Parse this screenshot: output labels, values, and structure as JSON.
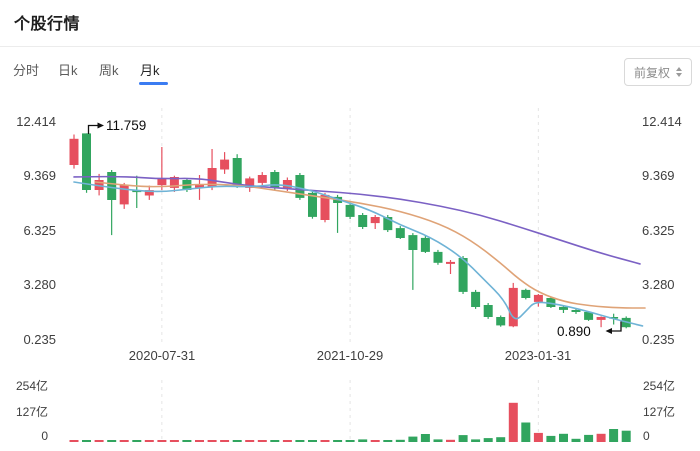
{
  "header": {
    "title": "个股行情"
  },
  "tabs": [
    {
      "label": "分时",
      "active": false
    },
    {
      "label": "日k",
      "active": false
    },
    {
      "label": "周k",
      "active": false
    },
    {
      "label": "月k",
      "active": true
    }
  ],
  "adjust_button": {
    "label": "前复权",
    "icon": "updown-sort-arrows"
  },
  "chart_data": {
    "type": "candlestick",
    "interval": "monthly",
    "y_axis_labels": [
      "12.414",
      "9.369",
      "6.325",
      "3.280",
      "0.235"
    ],
    "y_axis_values": [
      12.414,
      9.369,
      6.325,
      3.28,
      0.235
    ],
    "x_axis_labels": [
      "2020-07-31",
      "2021-10-29",
      "2023-01-31"
    ],
    "x_label_candle_indices": [
      7,
      22,
      37
    ],
    "volume_axis_labels": [
      "254亿",
      "127亿",
      "0"
    ],
    "volume_axis_values": [
      254,
      127,
      0
    ],
    "volume_unit": "亿",
    "annotations": {
      "max": {
        "label": "11.759",
        "value": 11.759,
        "candle_index": 1
      },
      "min": {
        "label": "0.890",
        "value": 0.89,
        "candle_index": 44
      }
    },
    "colors": {
      "up": "#e64f5e",
      "down": "#31a55f",
      "grid": "#e4e4e4",
      "ma_short": "#6fb3d6",
      "ma_mid": "#dfa377",
      "ma_long": "#7b61c4",
      "tab_accent": "#3b7cf2"
    },
    "candles": [
      [
        10.0,
        11.7,
        9.8,
        11.46
      ],
      [
        11.759,
        11.759,
        8.45,
        8.6
      ],
      [
        8.6,
        9.5,
        8.3,
        9.16
      ],
      [
        9.61,
        9.72,
        6.09,
        8.05
      ],
      [
        7.8,
        9.0,
        7.55,
        8.88
      ],
      [
        8.6,
        9.4,
        7.6,
        8.49
      ],
      [
        8.3,
        8.85,
        8.05,
        8.6
      ],
      [
        8.88,
        11.0,
        8.6,
        9.27
      ],
      [
        8.72,
        9.4,
        8.5,
        9.33
      ],
      [
        9.16,
        9.27,
        8.49,
        8.6
      ],
      [
        8.72,
        9.44,
        8.05,
        8.9
      ],
      [
        8.77,
        10.89,
        8.6,
        9.83
      ],
      [
        9.75,
        10.72,
        9.5,
        10.3
      ],
      [
        10.39,
        10.6,
        8.72,
        8.88
      ],
      [
        8.72,
        9.35,
        8.5,
        9.25
      ],
      [
        9.0,
        9.6,
        8.85,
        9.44
      ],
      [
        9.61,
        9.72,
        8.6,
        8.72
      ],
      [
        8.72,
        9.3,
        8.55,
        9.16
      ],
      [
        9.44,
        9.55,
        8.05,
        8.16
      ],
      [
        8.44,
        8.55,
        7.0,
        7.1
      ],
      [
        6.93,
        8.44,
        6.8,
        8.33
      ],
      [
        8.22,
        8.33,
        6.21,
        7.88
      ],
      [
        7.77,
        7.88,
        6.98,
        7.1
      ],
      [
        7.21,
        7.32,
        6.43,
        6.54
      ],
      [
        6.76,
        7.21,
        6.43,
        7.1
      ],
      [
        7.1,
        7.21,
        6.26,
        6.37
      ],
      [
        6.48,
        6.59,
        5.87,
        5.93
      ],
      [
        6.09,
        6.2,
        3.03,
        5.26
      ],
      [
        5.93,
        6.04,
        5.09,
        5.15
      ],
      [
        5.15,
        5.26,
        4.43,
        4.54
      ],
      [
        4.48,
        4.7,
        3.92,
        4.59
      ],
      [
        4.81,
        4.92,
        2.8,
        2.92
      ],
      [
        2.92,
        3.03,
        1.97,
        2.08
      ],
      [
        2.19,
        2.3,
        1.41,
        1.52
      ],
      [
        1.52,
        1.6,
        0.98,
        1.05
      ],
      [
        1.0,
        3.42,
        0.95,
        3.14
      ],
      [
        3.03,
        3.1,
        2.5,
        2.58
      ],
      [
        2.36,
        2.8,
        2.1,
        2.75
      ],
      [
        2.58,
        2.64,
        2.02,
        2.08
      ],
      [
        2.08,
        2.19,
        1.74,
        1.91
      ],
      [
        1.91,
        2.02,
        1.69,
        1.8
      ],
      [
        1.8,
        1.85,
        1.3,
        1.36
      ],
      [
        1.36,
        1.55,
        0.95,
        1.52
      ],
      [
        1.52,
        1.7,
        1.1,
        1.45
      ],
      [
        1.47,
        1.55,
        0.89,
        0.95
      ]
    ],
    "volumes": [
      9,
      8,
      6,
      8,
      6,
      5,
      4,
      6,
      5,
      5,
      6,
      5,
      6,
      7,
      5,
      5,
      5,
      4,
      8,
      6,
      5,
      4,
      6,
      12,
      6,
      8,
      10,
      25,
      37,
      12,
      10,
      32,
      12,
      18,
      22,
      181,
      90,
      42,
      28,
      38,
      15,
      33,
      38,
      60,
      52
    ],
    "ma_lines": [
      {
        "name": "ma-long",
        "color": "#7b61c4",
        "points": [
          [
            0,
            9.33
          ],
          [
            3.7,
            9.38
          ],
          [
            6.9,
            9.22
          ],
          [
            10,
            9.27
          ],
          [
            13.2,
            8.88
          ],
          [
            16.4,
            8.71
          ],
          [
            19.6,
            8.55
          ],
          [
            22.8,
            8.38
          ],
          [
            26,
            8.1
          ],
          [
            29.2,
            7.71
          ],
          [
            32.4,
            7.21
          ],
          [
            35.5,
            6.54
          ],
          [
            38.7,
            5.82
          ],
          [
            41.9,
            5.09
          ],
          [
            45.1,
            4.48
          ]
        ]
      },
      {
        "name": "ma-mid",
        "color": "#dfa377",
        "points": [
          [
            1.7,
            9.05
          ],
          [
            4.5,
            8.83
          ],
          [
            6.9,
            8.77
          ],
          [
            10,
            8.94
          ],
          [
            13.2,
            8.88
          ],
          [
            16.4,
            8.55
          ],
          [
            19.6,
            8.22
          ],
          [
            22.8,
            7.88
          ],
          [
            26,
            7.43
          ],
          [
            29.2,
            6.71
          ],
          [
            31.6,
            5.82
          ],
          [
            33.9,
            4.59
          ],
          [
            35.5,
            3.59
          ],
          [
            37.1,
            2.86
          ],
          [
            39.1,
            2.36
          ],
          [
            41.1,
            2.14
          ],
          [
            43.5,
            2.02
          ],
          [
            45.5,
            2.02
          ]
        ]
      },
      {
        "name": "ma-short",
        "color": "#6fb3d6",
        "points": [
          [
            0,
            9.05
          ],
          [
            2.1,
            8.83
          ],
          [
            4.5,
            8.6
          ],
          [
            6.9,
            8.49
          ],
          [
            9.2,
            8.66
          ],
          [
            11.6,
            8.83
          ],
          [
            14,
            8.77
          ],
          [
            16.4,
            8.94
          ],
          [
            18.8,
            8.6
          ],
          [
            21.2,
            8.05
          ],
          [
            23.6,
            7.49
          ],
          [
            26,
            6.65
          ],
          [
            28.4,
            5.98
          ],
          [
            30.8,
            4.92
          ],
          [
            32.7,
            3.59
          ],
          [
            34.3,
            2.47
          ],
          [
            35.1,
            1.2
          ],
          [
            36.1,
            1.91
          ],
          [
            36.7,
            2.36
          ],
          [
            37.9,
            2.3
          ],
          [
            39.5,
            2.08
          ],
          [
            41.1,
            1.8
          ],
          [
            42.7,
            1.47
          ],
          [
            44.3,
            1.19
          ],
          [
            45.3,
            1.02
          ]
        ]
      }
    ]
  }
}
